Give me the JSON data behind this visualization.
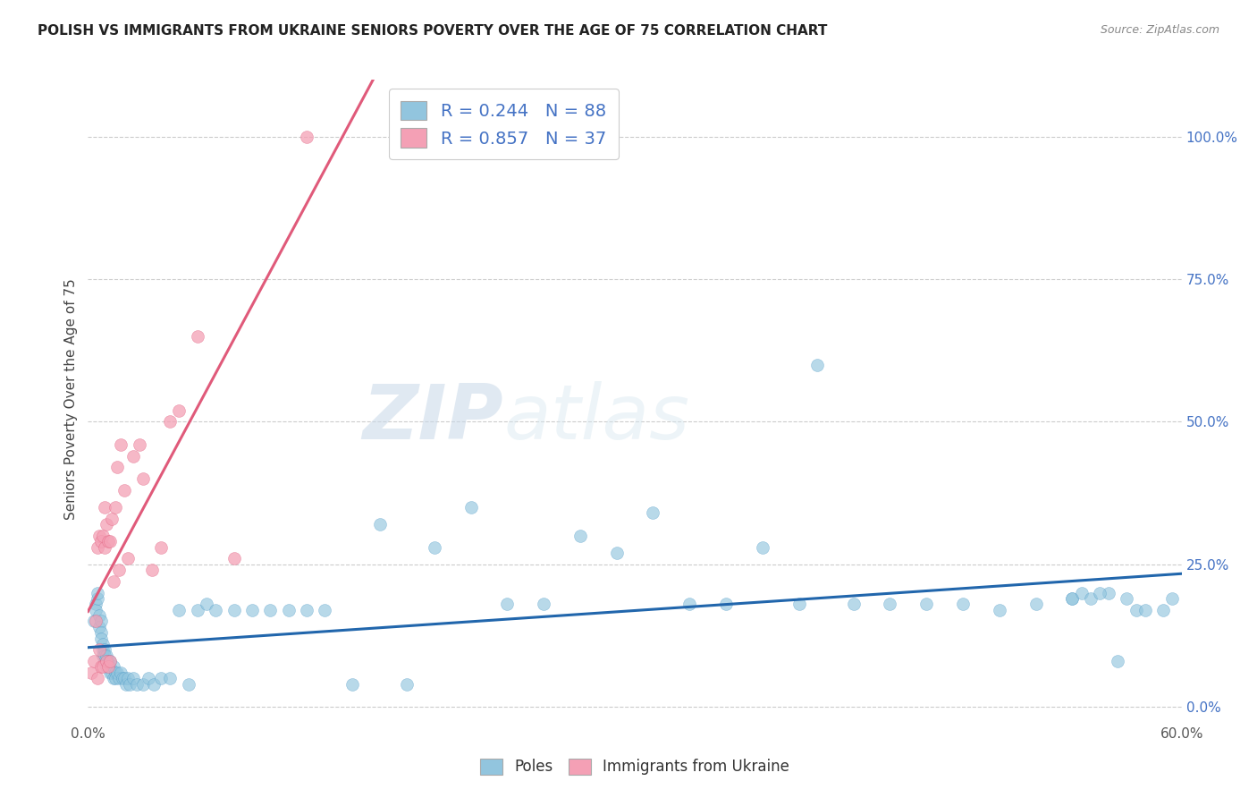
{
  "title": "POLISH VS IMMIGRANTS FROM UKRAINE SENIORS POVERTY OVER THE AGE OF 75 CORRELATION CHART",
  "source": "Source: ZipAtlas.com",
  "ylabel": "Seniors Poverty Over the Age of 75",
  "xlim": [
    0.0,
    0.6
  ],
  "ylim": [
    -0.02,
    1.1
  ],
  "xtick_positions": [
    0.0,
    0.1,
    0.2,
    0.3,
    0.4,
    0.5,
    0.6
  ],
  "xtick_labels_shown": {
    "0.0": "0.0%",
    "0.60": "60.0%"
  },
  "yticks_right": [
    0.0,
    0.25,
    0.5,
    0.75,
    1.0
  ],
  "yticklabels_right": [
    "0.0%",
    "25.0%",
    "50.0%",
    "75.0%",
    "100.0%"
  ],
  "poles_R": 0.244,
  "poles_N": 88,
  "ukraine_R": 0.857,
  "ukraine_N": 37,
  "poles_color": "#92c5de",
  "poles_edge_color": "#4393c3",
  "poles_line_color": "#2166ac",
  "ukraine_color": "#f4a0b5",
  "ukraine_edge_color": "#e05a7a",
  "ukraine_line_color": "#e05a7a",
  "watermark_zip": "ZIP",
  "watermark_atlas": "atlas",
  "grid_color": "#cccccc",
  "poles_x": [
    0.003,
    0.004,
    0.004,
    0.005,
    0.005,
    0.006,
    0.006,
    0.007,
    0.007,
    0.007,
    0.008,
    0.008,
    0.008,
    0.009,
    0.009,
    0.009,
    0.01,
    0.01,
    0.01,
    0.011,
    0.011,
    0.012,
    0.012,
    0.012,
    0.013,
    0.014,
    0.014,
    0.015,
    0.015,
    0.016,
    0.017,
    0.018,
    0.019,
    0.02,
    0.021,
    0.022,
    0.023,
    0.025,
    0.027,
    0.03,
    0.033,
    0.036,
    0.04,
    0.045,
    0.05,
    0.055,
    0.06,
    0.065,
    0.07,
    0.08,
    0.09,
    0.1,
    0.11,
    0.12,
    0.13,
    0.145,
    0.16,
    0.175,
    0.19,
    0.21,
    0.23,
    0.25,
    0.27,
    0.29,
    0.31,
    0.33,
    0.35,
    0.37,
    0.39,
    0.4,
    0.42,
    0.44,
    0.46,
    0.48,
    0.5,
    0.52,
    0.54,
    0.56,
    0.575,
    0.59,
    0.54,
    0.545,
    0.55,
    0.555,
    0.565,
    0.57,
    0.58,
    0.595
  ],
  "poles_y": [
    0.15,
    0.18,
    0.17,
    0.19,
    0.2,
    0.16,
    0.14,
    0.15,
    0.13,
    0.12,
    0.1,
    0.09,
    0.11,
    0.1,
    0.08,
    0.09,
    0.07,
    0.08,
    0.09,
    0.07,
    0.08,
    0.07,
    0.06,
    0.08,
    0.06,
    0.07,
    0.05,
    0.06,
    0.05,
    0.06,
    0.05,
    0.06,
    0.05,
    0.05,
    0.04,
    0.05,
    0.04,
    0.05,
    0.04,
    0.04,
    0.05,
    0.04,
    0.05,
    0.05,
    0.17,
    0.04,
    0.17,
    0.18,
    0.17,
    0.17,
    0.17,
    0.17,
    0.17,
    0.17,
    0.17,
    0.04,
    0.32,
    0.04,
    0.28,
    0.35,
    0.18,
    0.18,
    0.3,
    0.27,
    0.34,
    0.18,
    0.18,
    0.28,
    0.18,
    0.6,
    0.18,
    0.18,
    0.18,
    0.18,
    0.17,
    0.18,
    0.19,
    0.2,
    0.17,
    0.17,
    0.19,
    0.2,
    0.19,
    0.2,
    0.08,
    0.19,
    0.17,
    0.19
  ],
  "ukraine_x": [
    0.002,
    0.003,
    0.004,
    0.005,
    0.005,
    0.006,
    0.006,
    0.007,
    0.007,
    0.008,
    0.008,
    0.009,
    0.009,
    0.01,
    0.01,
    0.011,
    0.011,
    0.012,
    0.012,
    0.013,
    0.014,
    0.015,
    0.016,
    0.017,
    0.018,
    0.02,
    0.022,
    0.025,
    0.028,
    0.03,
    0.035,
    0.04,
    0.045,
    0.05,
    0.06,
    0.08,
    0.12
  ],
  "ukraine_y": [
    0.06,
    0.08,
    0.15,
    0.28,
    0.05,
    0.1,
    0.3,
    0.29,
    0.07,
    0.07,
    0.3,
    0.35,
    0.28,
    0.08,
    0.32,
    0.07,
    0.29,
    0.29,
    0.08,
    0.33,
    0.22,
    0.35,
    0.42,
    0.24,
    0.46,
    0.38,
    0.26,
    0.44,
    0.46,
    0.4,
    0.24,
    0.28,
    0.5,
    0.52,
    0.65,
    0.26,
    1.0
  ]
}
